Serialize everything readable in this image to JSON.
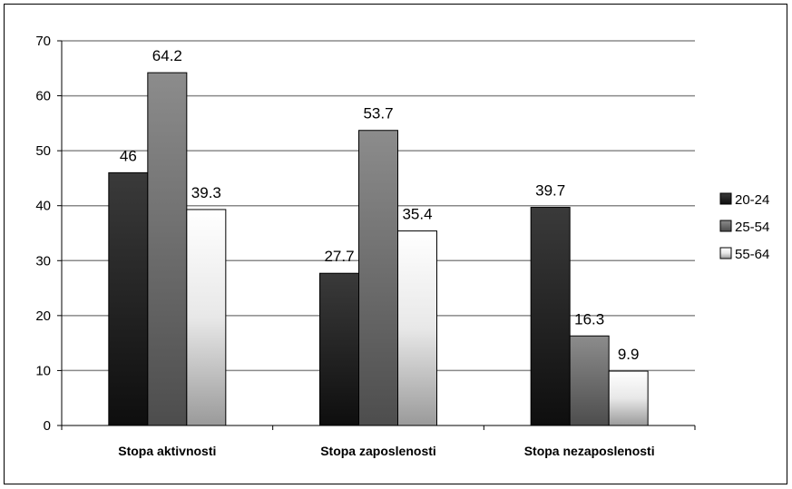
{
  "chart_data": {
    "type": "bar",
    "categories": [
      "Stopa aktivnosti",
      "Stopa zaposlenosti",
      "Stopa nezaposlenosti"
    ],
    "series": [
      {
        "name": "20-24",
        "values": [
          46,
          27.7,
          39.7
        ],
        "color": "#222222"
      },
      {
        "name": "25-54",
        "values": [
          64.2,
          53.7,
          16.3
        ],
        "color": "#7a7a7a"
      },
      {
        "name": "55-64",
        "values": [
          39.3,
          35.4,
          9.9
        ],
        "color": "#f2f2f2"
      }
    ],
    "data_labels": [
      [
        "46",
        "27.7",
        "39.7"
      ],
      [
        "64.2",
        "53.7",
        "16.3"
      ],
      [
        "39.3",
        "35.4",
        "9.9"
      ]
    ],
    "ylim": [
      0,
      70
    ],
    "yticks": [
      "0",
      "10",
      "20",
      "30",
      "40",
      "50",
      "60",
      "70"
    ],
    "grid": true,
    "legend_position": "right"
  }
}
